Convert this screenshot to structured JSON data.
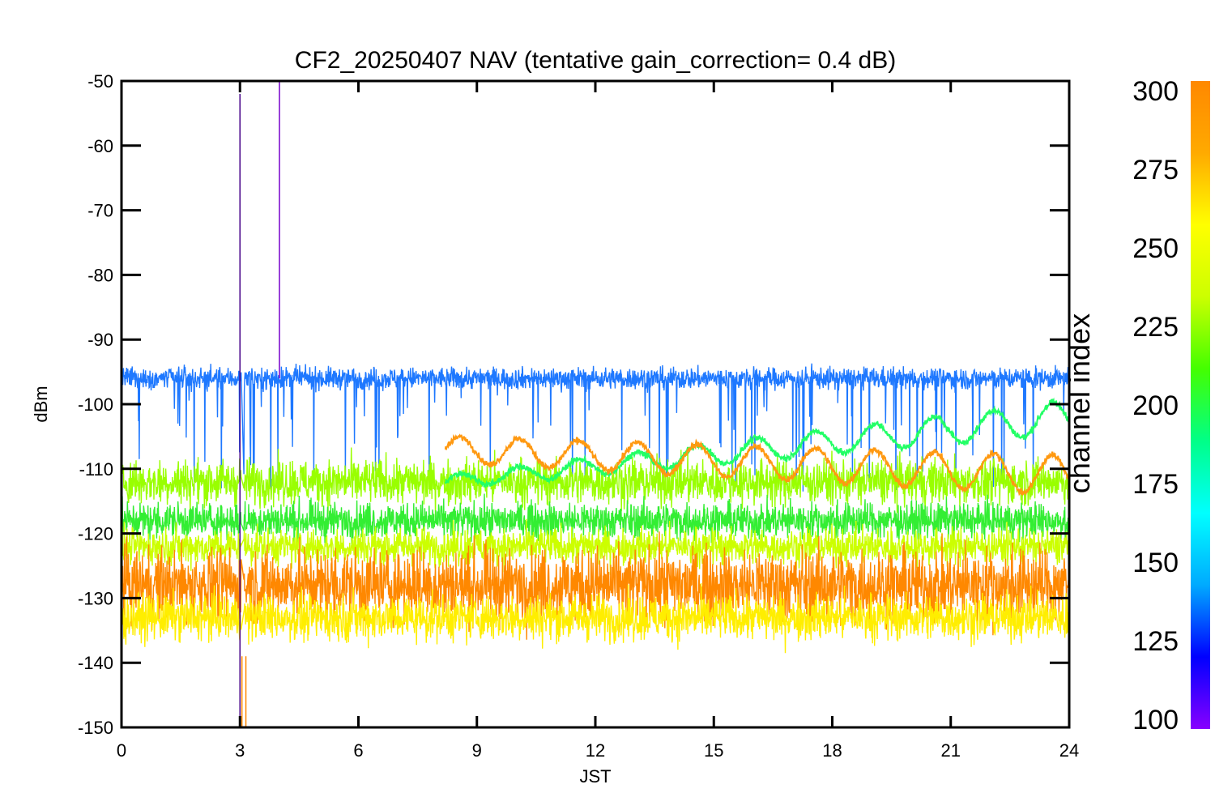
{
  "chart_data": {
    "type": "line",
    "title": "CF2_20250407 NAV (tentative gain_correction=  0.4 dB)",
    "xlabel": "JST",
    "ylabel": "dBm",
    "xlim": [
      0,
      24
    ],
    "ylim": [
      -150,
      -50
    ],
    "x_ticks": [
      "0",
      "3",
      "6",
      "9",
      "12",
      "15",
      "18",
      "21",
      "24"
    ],
    "y_ticks": [
      "-50",
      "-60",
      "-70",
      "-80",
      "-90",
      "-100",
      "-110",
      "-120",
      "-130",
      "-140",
      "-150"
    ],
    "grid": false,
    "colorbar": {
      "title": "channel index",
      "range": [
        100,
        300
      ],
      "ticks": [
        "300",
        "275",
        "250",
        "225",
        "200",
        "175",
        "150",
        "125",
        "100"
      ],
      "colors": [
        "#8800ff",
        "#0000ff",
        "#00aaff",
        "#00ffff",
        "#00ff88",
        "#44ff00",
        "#ccff00",
        "#ffff00",
        "#ffaa00",
        "#ff8800"
      ]
    },
    "series": [
      {
        "channel": 150,
        "color": "#1e78ff",
        "mean": -96,
        "noise": 1.2,
        "spikes": "down",
        "x_range": [
          0,
          24
        ]
      },
      {
        "channel": 255,
        "color": "#99ff00",
        "mean": -112,
        "noise": 2.5,
        "x_range": [
          0,
          24
        ]
      },
      {
        "channel": 240,
        "color": "#33ee33",
        "mean": -118,
        "noise": 2.0,
        "x_range": [
          0,
          24
        ]
      },
      {
        "channel": 265,
        "color": "#ccff00",
        "mean": -122,
        "noise": 2.0,
        "x_range": [
          0,
          24
        ]
      },
      {
        "channel": 290,
        "color": "#ff8800",
        "mean": -128,
        "noise": 4.0,
        "x_range": [
          0,
          24
        ]
      },
      {
        "channel": 270,
        "color": "#ffee00",
        "mean": -133,
        "noise": 2.5,
        "x_range": [
          0,
          24
        ]
      },
      {
        "channel": 230,
        "color": "#22ff66",
        "oscillating": true,
        "mean_start": -112,
        "mean_end": -102,
        "amp_start": 1,
        "amp_end": 2.5,
        "period": 1.5,
        "x_range": [
          8.2,
          24
        ]
      },
      {
        "channel": 290,
        "color": "#ff9911",
        "oscillating": true,
        "mean_start": -107,
        "mean_end": -111,
        "amp_start": 2,
        "amp_end": 3,
        "period": 1.5,
        "x_range": [
          8.2,
          24
        ]
      }
    ],
    "spikes": [
      {
        "x": 3.0,
        "y_from": -52,
        "y_to": -150,
        "color": "#440088"
      },
      {
        "x": 4.0,
        "y_from": -50,
        "y_to": -96,
        "color": "#7700cc"
      },
      {
        "x": 3.05,
        "y_from": -139,
        "y_to": -150,
        "color": "#ff8800"
      },
      {
        "x": 3.15,
        "y_from": -139,
        "y_to": -150,
        "color": "#ff8800"
      }
    ],
    "gap": {
      "x_from": 3.03,
      "x_to": 3.1
    }
  }
}
